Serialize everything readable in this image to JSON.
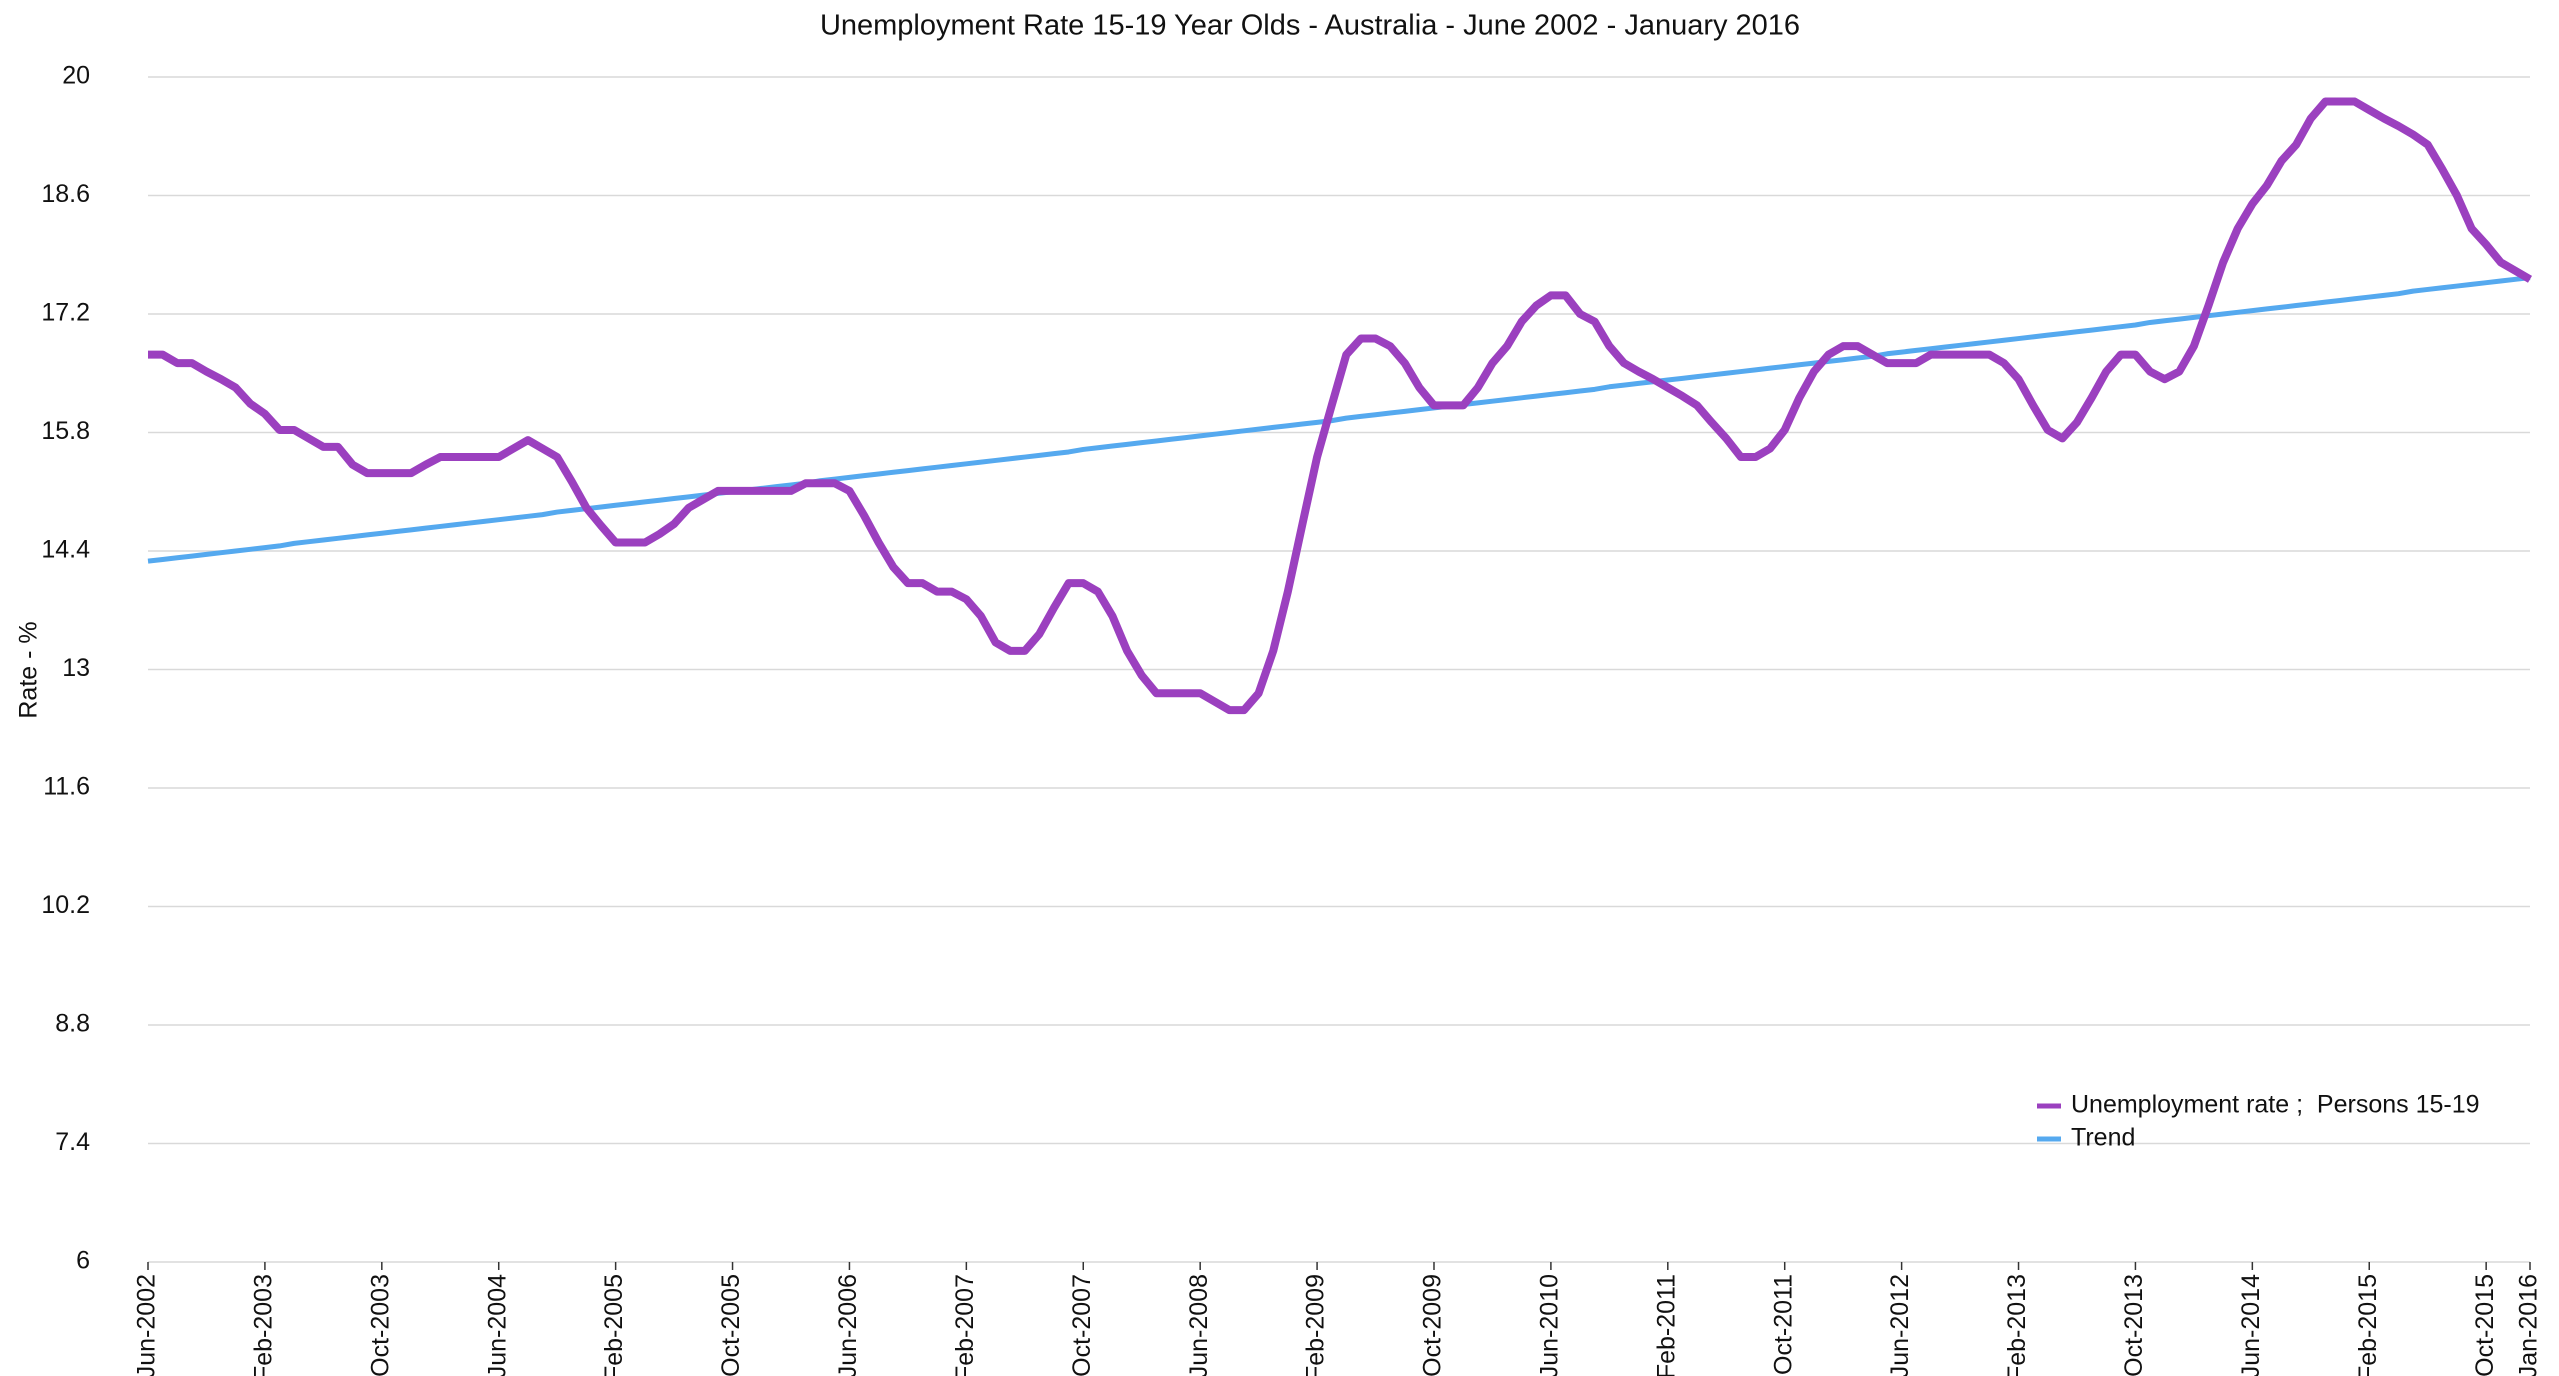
{
  "chart_data": {
    "type": "line",
    "title": "Unemployment Rate 15-19 Year Olds - Australia - June 2002 - January 2016",
    "y_label": "Rate - %",
    "categories": [
      "Jun-2002",
      null,
      null,
      null,
      null,
      null,
      null,
      null,
      "Feb-2003",
      null,
      null,
      null,
      null,
      null,
      null,
      null,
      "Oct-2003",
      null,
      null,
      null,
      null,
      null,
      null,
      null,
      "Jun-2004",
      null,
      null,
      null,
      null,
      null,
      null,
      null,
      "Feb-2005",
      null,
      null,
      null,
      null,
      null,
      null,
      null,
      "Oct-2005",
      null,
      null,
      null,
      null,
      null,
      null,
      null,
      "Jun-2006",
      null,
      null,
      null,
      null,
      null,
      null,
      null,
      "Feb-2007",
      null,
      null,
      null,
      null,
      null,
      null,
      null,
      "Oct-2007",
      null,
      null,
      null,
      null,
      null,
      null,
      null,
      "Jun-2008",
      null,
      null,
      null,
      null,
      null,
      null,
      null,
      "Feb-2009",
      null,
      null,
      null,
      null,
      null,
      null,
      null,
      "Oct-2009",
      null,
      null,
      null,
      null,
      null,
      null,
      null,
      "Jun-2010",
      null,
      null,
      null,
      null,
      null,
      null,
      null,
      "Feb-2011",
      null,
      null,
      null,
      null,
      null,
      null,
      null,
      "Oct-2011",
      null,
      null,
      null,
      null,
      null,
      null,
      null,
      "Jun-2012",
      null,
      null,
      null,
      null,
      null,
      null,
      null,
      "Feb-2013",
      null,
      null,
      null,
      null,
      null,
      null,
      null,
      "Oct-2013",
      null,
      null,
      null,
      null,
      null,
      null,
      null,
      "Jun-2014",
      null,
      null,
      null,
      null,
      null,
      null,
      null,
      "Feb-2015",
      null,
      null,
      null,
      null,
      null,
      null,
      null,
      "Oct-2015",
      null,
      null,
      "Jan-2016"
    ],
    "series": [
      {
        "name": "Unemployment rate ;  Persons 15-19",
        "color": "#9b40bf",
        "values": [
          16.72,
          16.72,
          16.62,
          16.62,
          16.52,
          16.43,
          16.33,
          16.14,
          16.02,
          15.83,
          15.83,
          15.73,
          15.63,
          15.63,
          15.42,
          15.32,
          15.32,
          15.32,
          15.32,
          15.42,
          15.51,
          15.51,
          15.51,
          15.51,
          15.51,
          15.61,
          15.71,
          15.61,
          15.51,
          15.22,
          14.91,
          14.7,
          14.5,
          14.5,
          14.5,
          14.6,
          14.72,
          14.91,
          15.01,
          15.11,
          15.11,
          15.11,
          15.11,
          15.11,
          15.11,
          15.2,
          15.2,
          15.2,
          15.11,
          14.82,
          14.5,
          14.21,
          14.02,
          14.02,
          13.92,
          13.92,
          13.83,
          13.63,
          13.32,
          13.22,
          13.22,
          13.42,
          13.73,
          14.02,
          14.02,
          13.92,
          13.63,
          13.22,
          12.93,
          12.72,
          12.72,
          12.72,
          12.72,
          12.62,
          12.52,
          12.52,
          12.72,
          13.22,
          13.92,
          14.72,
          15.51,
          16.12,
          16.72,
          16.91,
          16.91,
          16.82,
          16.62,
          16.33,
          16.12,
          16.12,
          16.12,
          16.33,
          16.62,
          16.82,
          17.11,
          17.3,
          17.42,
          17.42,
          17.2,
          17.11,
          16.82,
          16.62,
          16.52,
          16.43,
          16.33,
          16.23,
          16.12,
          15.92,
          15.73,
          15.51,
          15.51,
          15.61,
          15.83,
          16.21,
          16.52,
          16.72,
          16.82,
          16.82,
          16.72,
          16.62,
          16.62,
          16.62,
          16.72,
          16.72,
          16.72,
          16.72,
          16.72,
          16.62,
          16.43,
          16.12,
          15.83,
          15.73,
          15.92,
          16.21,
          16.52,
          16.72,
          16.72,
          16.52,
          16.43,
          16.52,
          16.82,
          17.3,
          17.81,
          18.21,
          18.5,
          18.72,
          19.01,
          19.2,
          19.51,
          19.71,
          19.71,
          19.71,
          19.61,
          19.51,
          19.42,
          19.32,
          19.2,
          18.91,
          18.6,
          18.21,
          18.02,
          17.81,
          17.71,
          17.61
        ]
      },
      {
        "name": "Trend",
        "color": "#55a9ef",
        "values": [
          14.28,
          14.3,
          14.32,
          14.34,
          14.36,
          14.38,
          14.4,
          14.42,
          14.44,
          14.46,
          14.49,
          14.51,
          14.53,
          14.55,
          14.57,
          14.59,
          14.61,
          14.63,
          14.65,
          14.67,
          14.69,
          14.71,
          14.73,
          14.75,
          14.77,
          14.79,
          14.81,
          14.83,
          14.86,
          14.88,
          14.9,
          14.92,
          14.94,
          14.96,
          14.98,
          15.0,
          15.02,
          15.04,
          15.06,
          15.08,
          15.1,
          15.12,
          15.14,
          15.16,
          15.18,
          15.2,
          15.23,
          15.25,
          15.27,
          15.29,
          15.31,
          15.33,
          15.35,
          15.37,
          15.39,
          15.41,
          15.43,
          15.45,
          15.47,
          15.49,
          15.51,
          15.53,
          15.55,
          15.57,
          15.6,
          15.62,
          15.64,
          15.66,
          15.68,
          15.7,
          15.72,
          15.74,
          15.76,
          15.78,
          15.8,
          15.82,
          15.84,
          15.86,
          15.88,
          15.9,
          15.92,
          15.94,
          15.97,
          15.99,
          16.01,
          16.03,
          16.05,
          16.07,
          16.09,
          16.11,
          16.13,
          16.15,
          16.17,
          16.19,
          16.21,
          16.23,
          16.25,
          16.27,
          16.29,
          16.31,
          16.34,
          16.36,
          16.38,
          16.4,
          16.42,
          16.44,
          16.46,
          16.48,
          16.5,
          16.52,
          16.54,
          16.56,
          16.58,
          16.6,
          16.62,
          16.64,
          16.66,
          16.68,
          16.7,
          16.73,
          16.75,
          16.77,
          16.79,
          16.81,
          16.83,
          16.85,
          16.87,
          16.89,
          16.91,
          16.93,
          16.95,
          16.97,
          16.99,
          17.01,
          17.03,
          17.05,
          17.07,
          17.1,
          17.12,
          17.14,
          17.16,
          17.18,
          17.2,
          17.22,
          17.24,
          17.26,
          17.28,
          17.3,
          17.32,
          17.34,
          17.36,
          17.38,
          17.4,
          17.42,
          17.44,
          17.47,
          17.49,
          17.51,
          17.53,
          17.55,
          17.57,
          17.59,
          17.61,
          17.63
        ]
      }
    ],
    "ylim": [
      6,
      20
    ],
    "yticks": [
      6,
      7.4,
      8.8,
      10.2,
      11.6,
      13,
      14.4,
      15.8,
      17.2,
      18.6,
      20
    ],
    "grid": true,
    "legend": "lower right"
  }
}
